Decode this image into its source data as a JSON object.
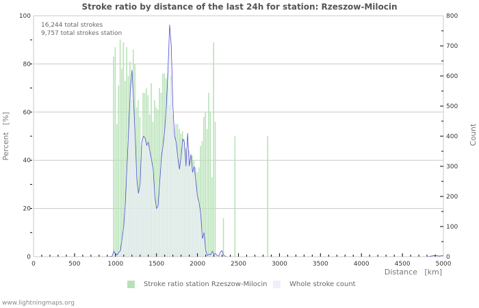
{
  "title": "Stroke ratio by distance of the last 24h for station: Rzeszow-Milocin",
  "annotations": {
    "total_strokes": "16,244 total strokes",
    "total_strokes_station": "9,757 total strokes station"
  },
  "legend": {
    "ratio_label": "Stroke ratio station Rzeszow-Milocin",
    "count_label": "Whole stroke count"
  },
  "credit": "www.lightningmaps.org",
  "colors": {
    "ratio_bar": "#b7e2b7",
    "count_line": "#5050d0",
    "count_fill": "#eeeefc",
    "grid": "#c8c8c8",
    "axis_text": "#333333",
    "label_text": "#777777"
  },
  "chart_data": {
    "type": "bar",
    "title": "Stroke ratio by distance of the last 24h for station: Rzeszow-Milocin",
    "xlabel": "Distance   [km]",
    "ylabel": "Percent   [%]",
    "y2label": "Count",
    "xlim": [
      0,
      5000
    ],
    "ylim": [
      0,
      100
    ],
    "y2lim": [
      0,
      800
    ],
    "x_ticks": [
      "0",
      "500",
      "1000",
      "1500",
      "2000",
      "2500",
      "3000",
      "3500",
      "4000",
      "4500",
      "5000"
    ],
    "y_ticks": [
      "0",
      "20",
      "40",
      "60",
      "80",
      "100"
    ],
    "y2_ticks": [
      "0",
      "100",
      "200",
      "300",
      "400",
      "500",
      "600",
      "700",
      "800"
    ],
    "grid": true,
    "legend_position": "bottom",
    "bin_width_km": 20,
    "series": [
      {
        "name": "Stroke ratio station Rzeszow-Milocin",
        "type": "bar",
        "axis": "left",
        "x": [
          980,
          1000,
          1020,
          1040,
          1060,
          1080,
          1100,
          1120,
          1140,
          1160,
          1180,
          1200,
          1220,
          1240,
          1260,
          1280,
          1300,
          1320,
          1340,
          1360,
          1380,
          1400,
          1420,
          1440,
          1460,
          1480,
          1500,
          1520,
          1540,
          1560,
          1580,
          1600,
          1620,
          1640,
          1660,
          1680,
          1700,
          1720,
          1740,
          1760,
          1780,
          1800,
          1820,
          1840,
          1860,
          1880,
          1900,
          1920,
          1940,
          1960,
          1980,
          2000,
          2020,
          2040,
          2060,
          2080,
          2100,
          2120,
          2140,
          2160,
          2180,
          2200,
          2220,
          2320,
          2460,
          2860
        ],
        "values": [
          83,
          87,
          55,
          71,
          90,
          78,
          89,
          73,
          87,
          75,
          81,
          65,
          86,
          80,
          62,
          65,
          58,
          46,
          68,
          68,
          70,
          67,
          59,
          72,
          56,
          65,
          62,
          61,
          70,
          68,
          76,
          76,
          74,
          76,
          63,
          75,
          59,
          53,
          55,
          55,
          53,
          51,
          52,
          49,
          45,
          43,
          44,
          41,
          42,
          40,
          37,
          35,
          37,
          46,
          48,
          58,
          60,
          53,
          68,
          60,
          33,
          89,
          56,
          16,
          50,
          50
        ]
      },
      {
        "name": "Whole stroke count",
        "type": "area",
        "axis": "right",
        "x": [
          900,
          960,
          980,
          1000,
          1020,
          1040,
          1060,
          1080,
          1100,
          1120,
          1140,
          1160,
          1180,
          1200,
          1220,
          1240,
          1260,
          1280,
          1300,
          1320,
          1340,
          1360,
          1380,
          1400,
          1420,
          1440,
          1460,
          1480,
          1500,
          1520,
          1540,
          1560,
          1580,
          1600,
          1620,
          1640,
          1660,
          1680,
          1700,
          1720,
          1740,
          1760,
          1780,
          1800,
          1820,
          1840,
          1860,
          1880,
          1900,
          1920,
          1940,
          1960,
          1980,
          2000,
          2020,
          2040,
          2060,
          2080,
          2100,
          2120,
          2140,
          2160,
          2180,
          2200,
          2220,
          2240,
          2260,
          2280,
          2300,
          2320,
          2340,
          2360,
          2400,
          2500,
          2600,
          2700,
          2860,
          3000,
          4800,
          4900,
          4950,
          5000
        ],
        "values": [
          0,
          2,
          18,
          8,
          6,
          14,
          20,
          60,
          100,
          180,
          300,
          420,
          550,
          620,
          520,
          400,
          260,
          210,
          240,
          380,
          400,
          395,
          370,
          380,
          350,
          320,
          290,
          200,
          160,
          170,
          250,
          330,
          370,
          420,
          500,
          620,
          770,
          700,
          500,
          400,
          380,
          330,
          290,
          330,
          390,
          380,
          300,
          410,
          300,
          340,
          280,
          300,
          250,
          200,
          180,
          140,
          60,
          80,
          20,
          4,
          8,
          6,
          18,
          8,
          10,
          4,
          2,
          16,
          20,
          4,
          2,
          0,
          0,
          0,
          0,
          0,
          0,
          0,
          0,
          4,
          2,
          4
        ]
      }
    ]
  }
}
